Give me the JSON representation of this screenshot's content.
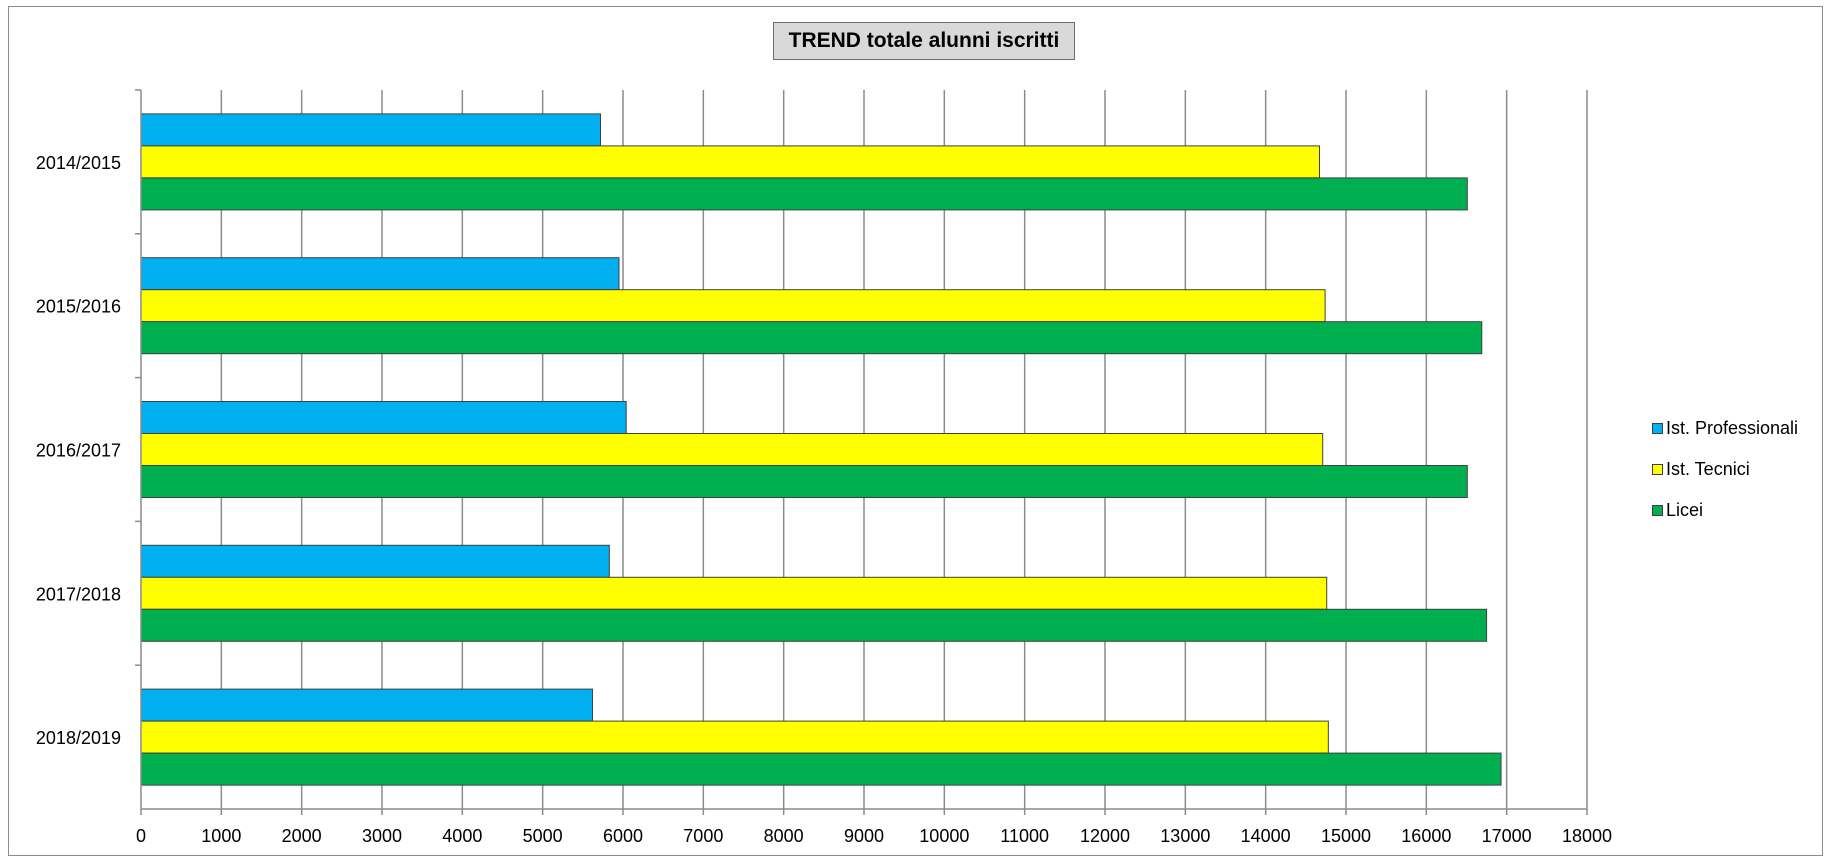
{
  "chart_data": {
    "type": "bar",
    "orientation": "horizontal",
    "title": "TREND totale alunni iscritti",
    "xlabel": "",
    "ylabel": "",
    "categories": [
      "2014/2015",
      "2015/2016",
      "2016/2017",
      "2017/2018",
      "2018/2019"
    ],
    "series": [
      {
        "name": "Ist. Professionali",
        "color": "#00b0f0",
        "values": [
          5720,
          5950,
          6040,
          5830,
          5620
        ]
      },
      {
        "name": "Ist. Tecnici",
        "color": "#ffff00",
        "values": [
          14670,
          14740,
          14710,
          14760,
          14780
        ]
      },
      {
        "name": "Licei",
        "color": "#00b050",
        "values": [
          16510,
          16690,
          16510,
          16750,
          16930
        ]
      }
    ],
    "xlim": [
      0,
      18000
    ],
    "x_ticks": [
      "0",
      "1000",
      "2000",
      "3000",
      "4000",
      "5000",
      "6000",
      "7000",
      "8000",
      "9000",
      "10000",
      "11000",
      "12000",
      "13000",
      "14000",
      "15000",
      "16000",
      "17000",
      "18000"
    ],
    "grid": "vertical",
    "legend_position": "right"
  }
}
